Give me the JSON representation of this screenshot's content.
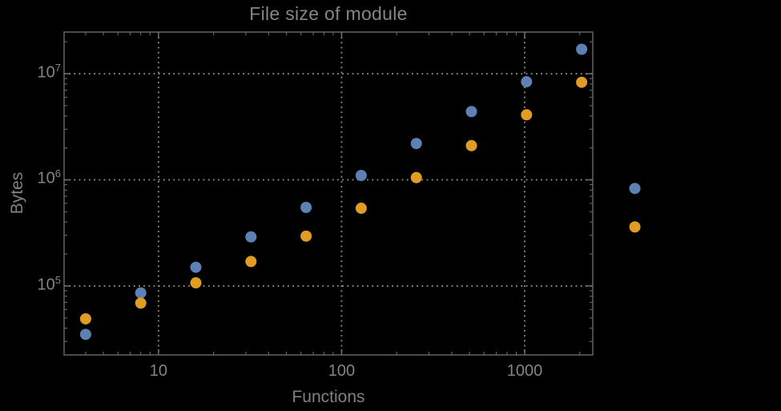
{
  "chart_data": {
    "type": "scatter",
    "title": "File size of module",
    "legend": null,
    "grid": {
      "style": "dotted",
      "x_values": [
        10,
        100,
        1000
      ],
      "y_values": [
        100000,
        1000000,
        10000000
      ]
    },
    "x_axis": {
      "label": "Functions",
      "scale": "log",
      "range": [
        3.05,
        2355
      ],
      "major_ticks": [
        10,
        100,
        1000
      ],
      "tick_labels": [
        "10",
        "100",
        "1000"
      ],
      "minor_ticks": "log subdecades 2-9"
    },
    "y_axis": {
      "label": "Bytes",
      "scale": "log",
      "range": [
        22400,
        24700000
      ],
      "major_ticks": [
        100000,
        1000000,
        10000000
      ],
      "tick_labels": [
        {
          "base": "10",
          "exp": "5"
        },
        {
          "base": "10",
          "exp": "6"
        },
        {
          "base": "10",
          "exp": "7"
        }
      ],
      "minor_ticks": "log subdecades 2-9"
    },
    "series": [
      {
        "name": "series-1-blue",
        "color": "#5E81B5",
        "points": [
          [
            4,
            35000
          ],
          [
            8,
            86000
          ],
          [
            16,
            150000
          ],
          [
            32,
            290000
          ],
          [
            64,
            550000
          ],
          [
            128,
            1100000
          ],
          [
            256,
            2200000
          ],
          [
            512,
            4400000
          ],
          [
            1024,
            8400000
          ],
          [
            2048,
            17000000
          ],
          [
            4000,
            830000
          ]
        ]
      },
      {
        "name": "series-2-orange",
        "color": "#E19C24",
        "points": [
          [
            4,
            49000
          ],
          [
            8,
            69000
          ],
          [
            16,
            107000
          ],
          [
            32,
            170000
          ],
          [
            64,
            295000
          ],
          [
            128,
            540000
          ],
          [
            256,
            1050000
          ],
          [
            512,
            2100000
          ],
          [
            1024,
            4100000
          ],
          [
            2048,
            8300000
          ],
          [
            4000,
            360000
          ]
        ]
      }
    ],
    "colors": {
      "background": "#000000",
      "frame": "#6a6a6a",
      "grid": "#8d8d8d",
      "text": "#848484"
    }
  }
}
